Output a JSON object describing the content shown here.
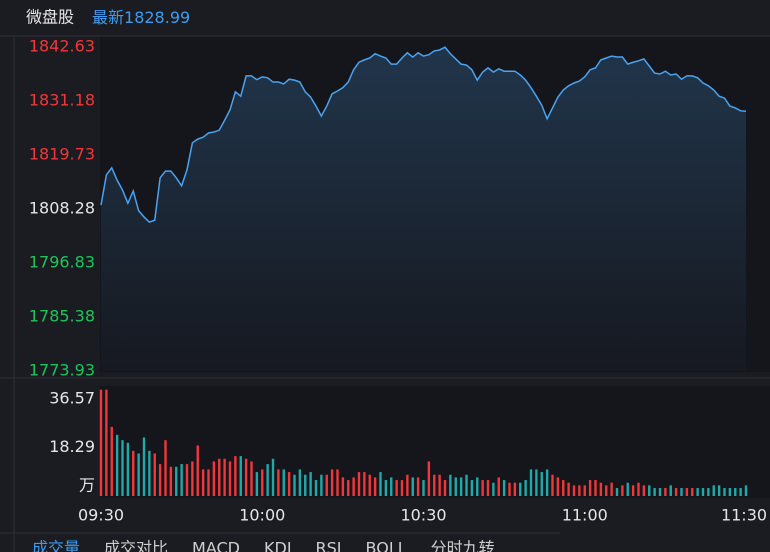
{
  "header": {
    "title": "微盘股",
    "latest_label": "最新",
    "latest": 1828.99
  },
  "chart_data": [
    {
      "type": "line",
      "series": [
        {
          "color": "#4aa3f0",
          "values": [
            1809.1,
            1815.5,
            1817.0,
            1814.4,
            1812.3,
            1809.5,
            1812.1,
            1807.9,
            1806.6,
            1805.5,
            1805.9,
            1814.9,
            1816.3,
            1816.3,
            1814.9,
            1813.2,
            1816.6,
            1822.3,
            1823.1,
            1823.5,
            1824.4,
            1824.6,
            1825.0,
            1827.1,
            1829.3,
            1833.1,
            1832.2,
            1836.5,
            1836.5,
            1835.7,
            1836.3,
            1836.1,
            1835.2,
            1835.2,
            1834.8,
            1835.8,
            1835.6,
            1835.2,
            1833.1,
            1832.0,
            1830.1,
            1828.0,
            1830.1,
            1832.7,
            1833.3,
            1834.0,
            1835.2,
            1837.8,
            1839.4,
            1839.9,
            1840.3,
            1841.2,
            1840.7,
            1840.3,
            1839.0,
            1839.0,
            1840.3,
            1841.4,
            1840.5,
            1841.4,
            1840.7,
            1841.0,
            1841.8,
            1842.0,
            1842.6,
            1841.2,
            1840.1,
            1839.0,
            1838.8,
            1837.8,
            1835.6,
            1837.3,
            1838.2,
            1837.3,
            1838.0,
            1837.5,
            1837.5,
            1837.5,
            1836.7,
            1835.6,
            1834.0,
            1832.2,
            1830.3,
            1827.4,
            1829.7,
            1832.0,
            1833.5,
            1834.4,
            1835.0,
            1835.4,
            1836.3,
            1837.8,
            1838.2,
            1839.9,
            1840.3,
            1840.7,
            1840.5,
            1840.5,
            1839.0,
            1839.4,
            1839.7,
            1840.1,
            1838.6,
            1837.1,
            1836.9,
            1837.5,
            1836.7,
            1836.9,
            1835.8,
            1836.5,
            1836.5,
            1836.1,
            1835.0,
            1834.4,
            1833.5,
            1832.2,
            1831.8,
            1830.1,
            1829.7,
            1829.1,
            1829.0
          ]
        }
      ],
      "ylim": [
        1773.93,
        1842.63
      ],
      "yticks": [
        1842.63,
        1831.18,
        1819.73,
        1808.28,
        1796.83,
        1785.38,
        1773.93
      ],
      "xlim": [
        0,
        120
      ],
      "xticks": [
        {
          "value": 0,
          "label": "09:30"
        },
        {
          "value": 30,
          "label": "10:00"
        },
        {
          "value": 60,
          "label": "10:30"
        },
        {
          "value": 90,
          "label": "11:00"
        },
        {
          "value": 120,
          "label": "11:30"
        }
      ],
      "up_color": "#f0373a",
      "down_color": "#1ec45a",
      "flat_color": "#e6e6e6",
      "grid": true
    },
    {
      "type": "bar",
      "values": [
        40,
        40,
        26,
        23,
        21,
        20,
        17,
        16,
        22,
        17,
        16,
        12,
        21,
        11,
        11,
        12,
        12,
        13,
        19,
        10,
        10,
        13,
        14,
        14,
        13,
        15,
        15,
        14,
        13,
        9,
        10,
        12,
        14,
        10,
        10,
        9,
        8,
        10,
        8,
        9,
        6,
        8,
        8,
        10,
        10,
        7,
        6,
        7,
        9,
        9,
        8,
        7,
        9,
        6,
        7,
        6,
        6,
        8,
        7,
        7,
        6,
        13,
        8,
        8,
        6,
        8,
        7,
        7,
        8,
        6,
        7,
        6,
        6,
        5,
        7,
        6,
        5,
        5,
        5,
        6,
        10,
        10,
        9,
        10,
        8,
        7,
        6,
        5,
        4,
        4,
        4,
        6,
        6,
        5,
        4,
        5,
        3,
        4,
        5,
        4,
        5,
        4,
        4,
        3,
        3,
        3,
        4,
        3,
        3,
        3,
        3,
        3,
        3,
        3,
        4,
        4,
        3,
        3,
        3,
        3,
        4
      ],
      "ylim": [
        0,
        41
      ],
      "yticks": [
        36.57,
        18.29,
        {
          "value": 0,
          "label": "万"
        }
      ],
      "xlim": [
        0,
        120
      ],
      "up_color": "#f0373a",
      "down_color": "#1fa9a9"
    }
  ],
  "tabs": [
    "成交量",
    "成交对比",
    "MACD",
    "KDJ",
    "RSI",
    "BOLL",
    "分时九转"
  ]
}
